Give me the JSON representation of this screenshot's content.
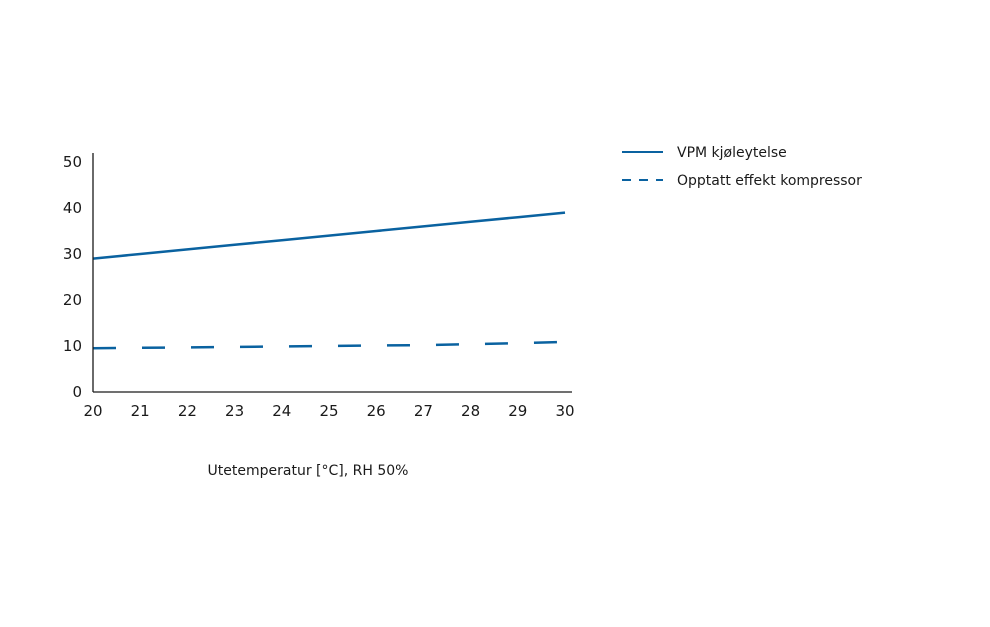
{
  "chart_data": {
    "type": "line",
    "xlabel": "Utetemperatur [°C], RH 50%",
    "ylabel": "",
    "x": [
      20,
      21,
      22,
      23,
      24,
      25,
      26,
      27,
      28,
      29,
      30
    ],
    "x_ticks": [
      "20",
      "21",
      "22",
      "23",
      "24",
      "25",
      "26",
      "27",
      "28",
      "29",
      "30"
    ],
    "y_ticks": [
      "0",
      "10",
      "20",
      "30",
      "40",
      "50"
    ],
    "xlim": [
      20,
      30
    ],
    "ylim": [
      0,
      50
    ],
    "grid": false,
    "legend_position": "top-right",
    "series": [
      {
        "name": "VPM kjøleytelse",
        "style": "solid",
        "values": [
          29,
          30,
          31,
          32,
          33,
          34,
          35,
          36,
          37,
          38,
          39
        ]
      },
      {
        "name": "Opptatt effekt kompressor",
        "style": "dashed",
        "values": [
          9.5,
          9.6,
          9.7,
          9.8,
          9.9,
          10.0,
          10.1,
          10.2,
          10.4,
          10.6,
          10.9
        ]
      }
    ],
    "colors": {
      "series": "#0a62a0",
      "axis": "#1a1a1a"
    }
  }
}
